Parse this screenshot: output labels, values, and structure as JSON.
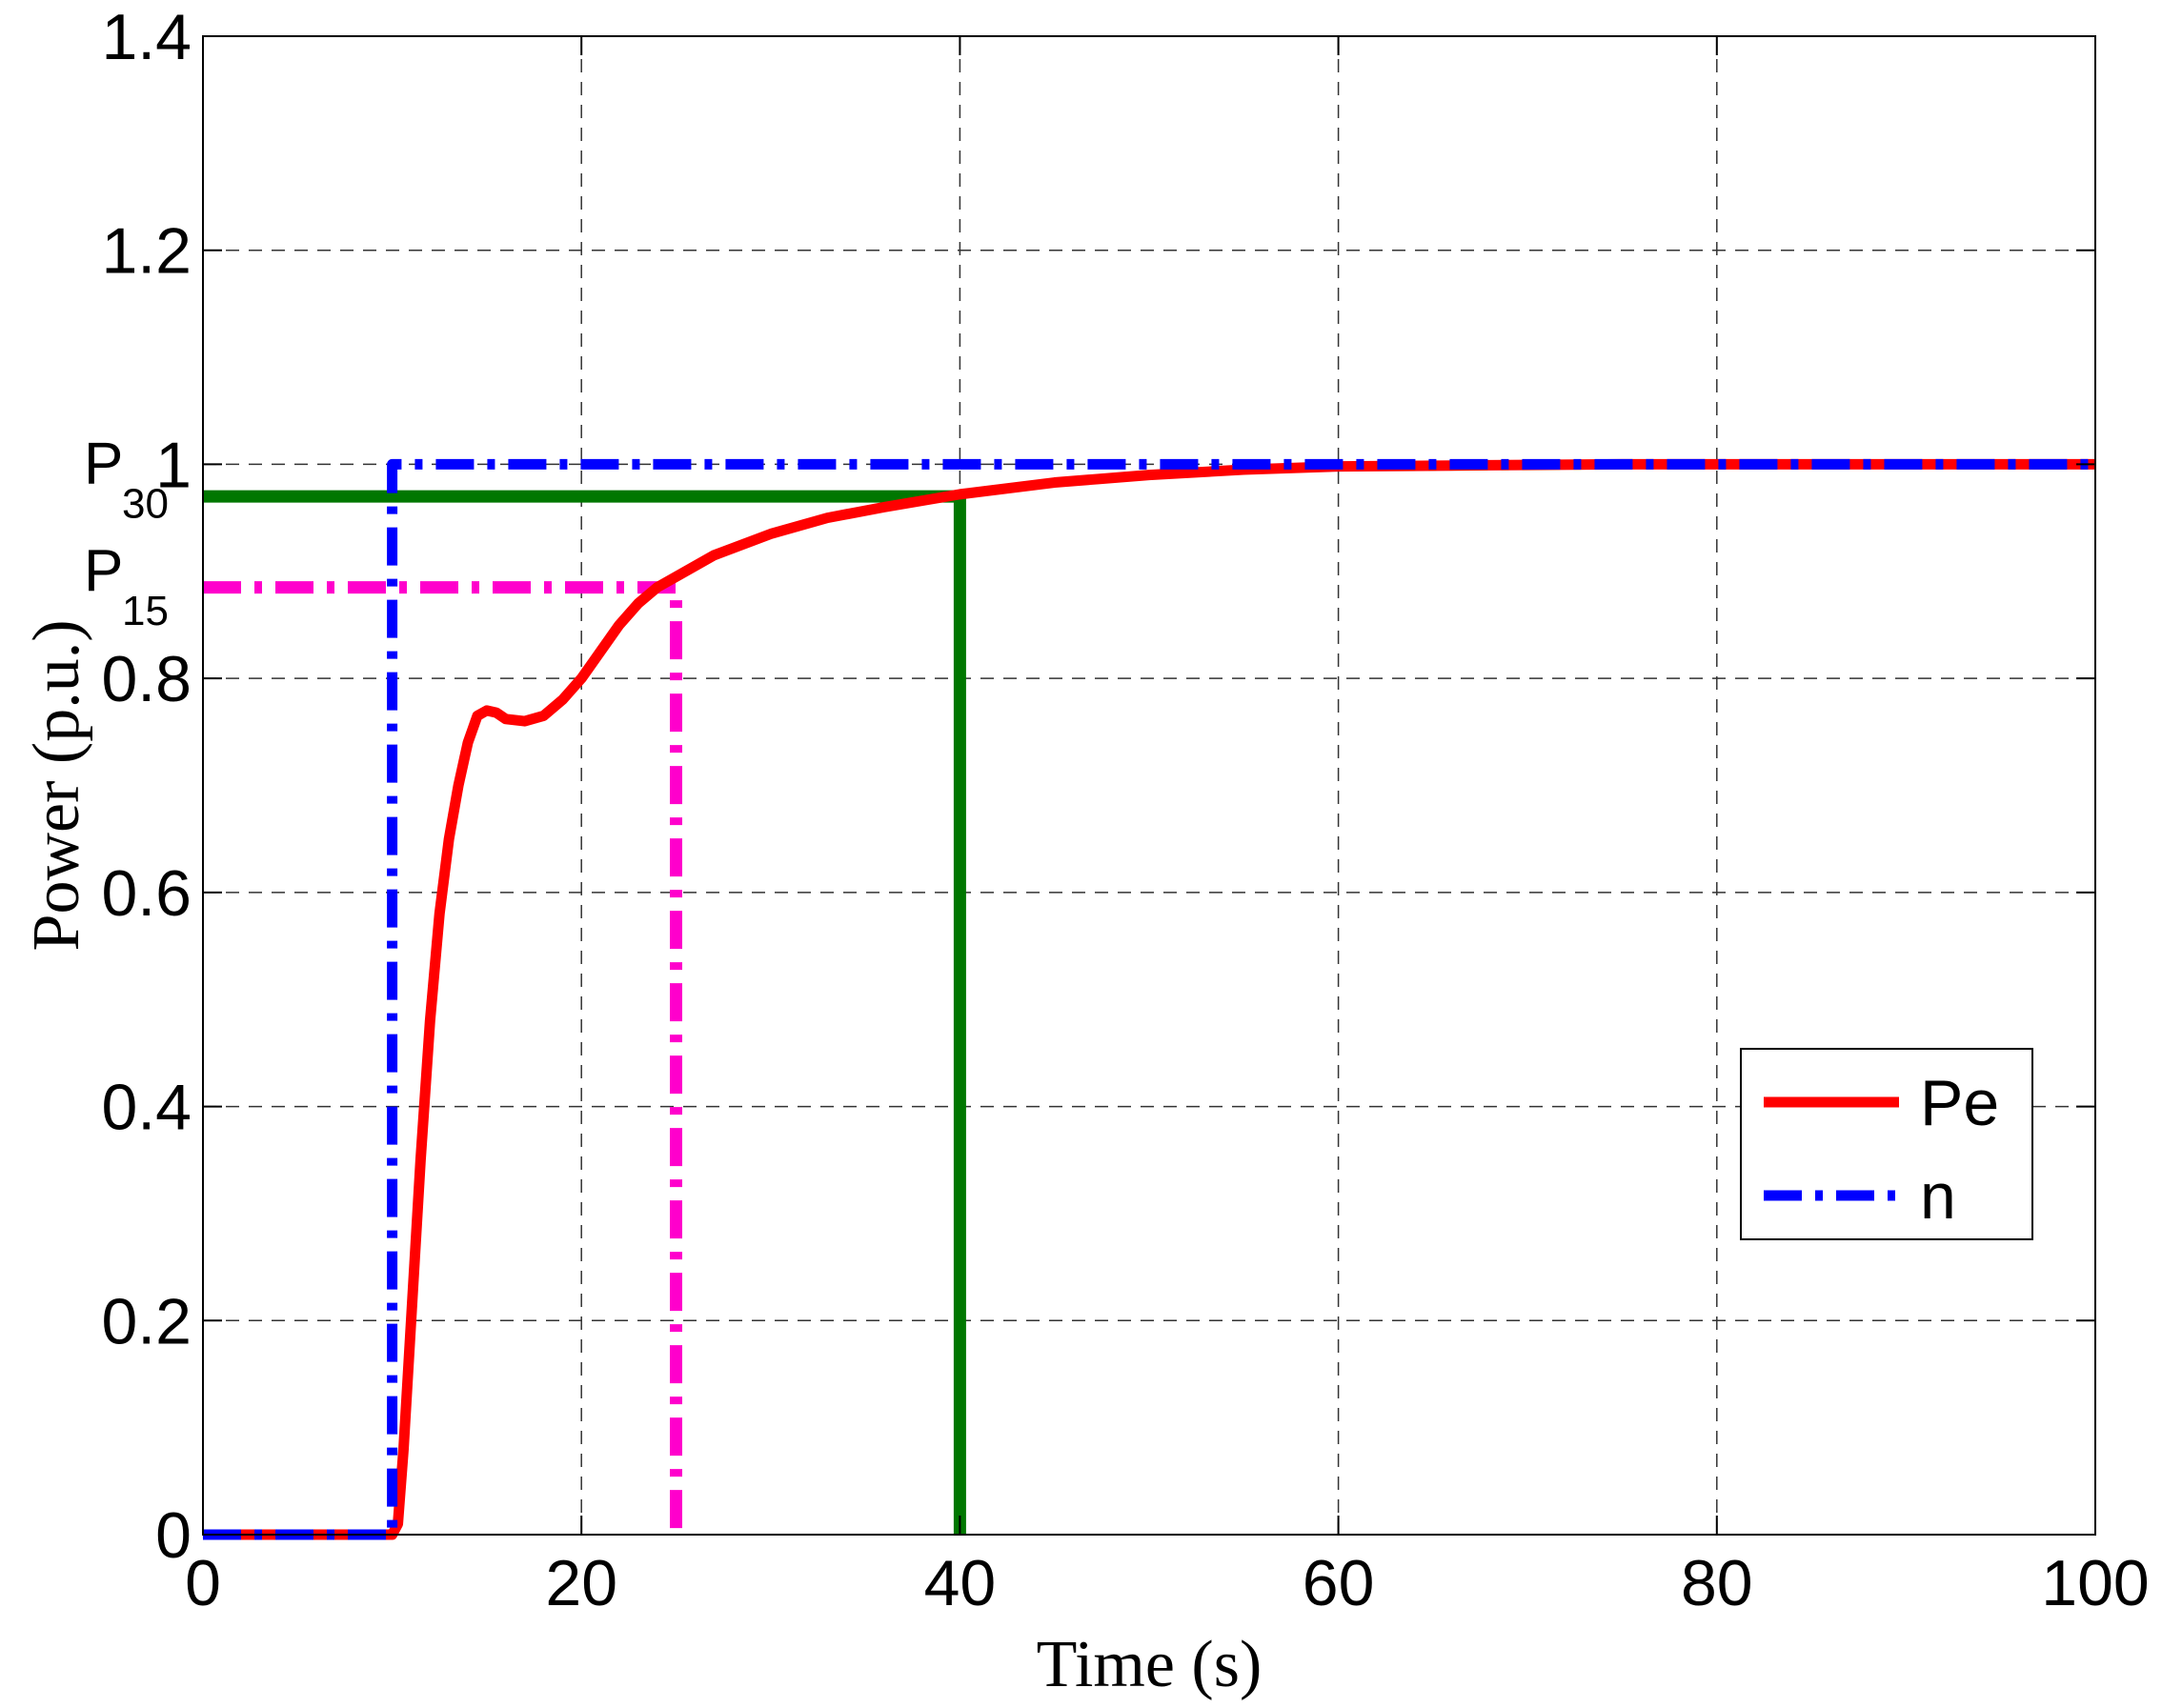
{
  "chart_data": {
    "type": "line",
    "title": "",
    "xlabel": "Time (s)",
    "ylabel": "Power (p.u.)",
    "xlim": [
      0,
      100
    ],
    "ylim": [
      0,
      1.4
    ],
    "xticks": [
      "0",
      "20",
      "40",
      "60",
      "80",
      "100"
    ],
    "yticks": [
      "0",
      "0.2",
      "0.4",
      "0.6",
      "0.8",
      "1",
      "1.2",
      "1.4"
    ],
    "grid": true,
    "legend_position": "lower-right",
    "series": [
      {
        "name": "Pe",
        "color": "#ff0000",
        "style": "solid",
        "x": [
          0,
          10.0,
          10.3,
          10.6,
          11.0,
          11.5,
          12.0,
          12.5,
          13.0,
          13.5,
          14.0,
          14.5,
          15.0,
          15.5,
          16.0,
          17.0,
          18.0,
          19.0,
          20.0,
          21.0,
          22.0,
          23.0,
          24.0,
          25.0,
          27.0,
          30.0,
          33.0,
          36.0,
          40.0,
          45.0,
          50.0,
          55.0,
          60.0,
          67.0,
          75.0,
          100.0
        ],
        "y": [
          0,
          0,
          0.01,
          0.08,
          0.2,
          0.35,
          0.48,
          0.58,
          0.65,
          0.7,
          0.74,
          0.765,
          0.77,
          0.768,
          0.762,
          0.76,
          0.765,
          0.78,
          0.8,
          0.825,
          0.85,
          0.87,
          0.885,
          0.895,
          0.915,
          0.935,
          0.95,
          0.96,
          0.972,
          0.983,
          0.99,
          0.995,
          0.998,
          0.999,
          1.0,
          1.0
        ]
      },
      {
        "name": "n",
        "color": "#0000ff",
        "style": "dashdot",
        "x": [
          0,
          10.0,
          10.0,
          100.0
        ],
        "y": [
          0,
          0,
          1.0,
          1.0
        ]
      }
    ],
    "reference_lines": [
      {
        "label": "P15",
        "color": "#ff00cc",
        "style": "dashdot",
        "x": [
          0,
          25,
          25
        ],
        "y": [
          0.885,
          0.885,
          0
        ]
      },
      {
        "label": "P30",
        "color": "#007700",
        "style": "solid",
        "x": [
          0,
          40,
          40
        ],
        "y": [
          0.97,
          0.97,
          0
        ]
      }
    ],
    "annotations": [
      {
        "main": "P",
        "sub": "30",
        "y": 1.0
      },
      {
        "main": "P",
        "sub": "15",
        "y": 0.9
      }
    ]
  }
}
